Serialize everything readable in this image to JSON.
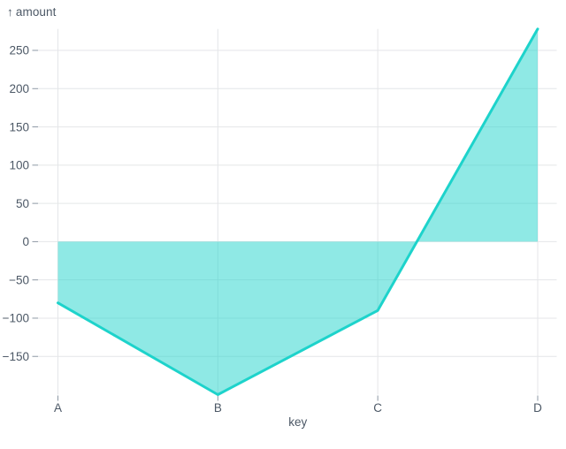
{
  "chart_data": {
    "type": "area",
    "categories": [
      "A",
      "B",
      "C",
      "D"
    ],
    "values": [
      -80,
      -200,
      -90,
      278
    ],
    "series": [
      {
        "name": "amount",
        "values": [
          -80,
          -200,
          -90,
          278
        ]
      }
    ],
    "title": "",
    "xlabel": "key",
    "ylabel": "amount",
    "ylabel_arrow": "↑",
    "yticks": [
      250,
      200,
      150,
      100,
      50,
      0,
      -50,
      -100,
      -150
    ],
    "ylim": [
      -200,
      278
    ],
    "baseline": 0,
    "grid": true,
    "legend": false,
    "line_color": "#1dd3cb",
    "fill_color": "rgba(31,211,203,0.5)",
    "grid_color": "#e4e6e8",
    "tick_color": "#8d98a4",
    "axis_text_color": "#4c5866"
  }
}
